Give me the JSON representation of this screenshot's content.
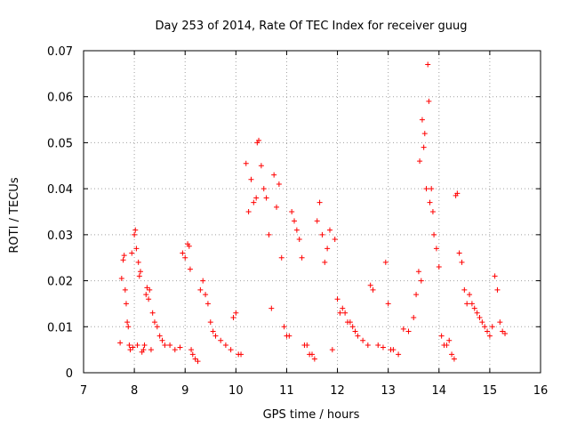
{
  "chart_data": {
    "type": "scatter",
    "title": "Day 253 of 2014, Rate Of TEC Index for receiver guug",
    "xlabel": "GPS time / hours",
    "ylabel": "ROTI / TECUs",
    "xlim": [
      7,
      16
    ],
    "ylim": [
      0,
      0.07
    ],
    "grid": true,
    "marker": "+",
    "color": "#ff0000",
    "x_ticks": [
      7,
      8,
      9,
      10,
      11,
      12,
      13,
      14,
      15,
      16
    ],
    "x_tick_labels": [
      "7",
      "8",
      "9",
      "10",
      "11",
      "12",
      "13",
      "14",
      "15",
      "16"
    ],
    "y_ticks": [
      0,
      0.01,
      0.02,
      0.03,
      0.04,
      0.05,
      0.06,
      0.07
    ],
    "y_tick_labels": [
      "0",
      "0.01",
      "0.02",
      "0.03",
      "0.04",
      "0.05",
      "0.06",
      "0.07"
    ],
    "series": [
      {
        "name": "ROTI",
        "points": [
          [
            7.72,
            0.0065
          ],
          [
            7.75,
            0.0205
          ],
          [
            7.78,
            0.0245
          ],
          [
            7.8,
            0.0255
          ],
          [
            7.82,
            0.018
          ],
          [
            7.84,
            0.015
          ],
          [
            7.86,
            0.011
          ],
          [
            7.88,
            0.01
          ],
          [
            7.9,
            0.006
          ],
          [
            7.92,
            0.005
          ],
          [
            7.95,
            0.026
          ],
          [
            7.97,
            0.0055
          ],
          [
            8.0,
            0.03
          ],
          [
            8.02,
            0.031
          ],
          [
            8.04,
            0.027
          ],
          [
            8.06,
            0.006
          ],
          [
            8.08,
            0.024
          ],
          [
            8.1,
            0.021
          ],
          [
            8.12,
            0.022
          ],
          [
            8.15,
            0.0045
          ],
          [
            8.18,
            0.005
          ],
          [
            8.2,
            0.006
          ],
          [
            8.23,
            0.017
          ],
          [
            8.25,
            0.0185
          ],
          [
            8.28,
            0.016
          ],
          [
            8.3,
            0.018
          ],
          [
            8.33,
            0.005
          ],
          [
            8.36,
            0.013
          ],
          [
            8.4,
            0.011
          ],
          [
            8.45,
            0.01
          ],
          [
            8.5,
            0.008
          ],
          [
            8.55,
            0.007
          ],
          [
            8.6,
            0.006
          ],
          [
            8.7,
            0.006
          ],
          [
            8.8,
            0.005
          ],
          [
            8.9,
            0.0055
          ],
          [
            8.95,
            0.026
          ],
          [
            9.0,
            0.025
          ],
          [
            9.05,
            0.028
          ],
          [
            9.08,
            0.0275
          ],
          [
            9.1,
            0.0225
          ],
          [
            9.12,
            0.005
          ],
          [
            9.15,
            0.004
          ],
          [
            9.2,
            0.003
          ],
          [
            9.25,
            0.0025
          ],
          [
            9.3,
            0.018
          ],
          [
            9.35,
            0.02
          ],
          [
            9.4,
            0.017
          ],
          [
            9.45,
            0.015
          ],
          [
            9.5,
            0.011
          ],
          [
            9.55,
            0.009
          ],
          [
            9.6,
            0.008
          ],
          [
            9.7,
            0.007
          ],
          [
            9.8,
            0.006
          ],
          [
            9.9,
            0.005
          ],
          [
            9.95,
            0.012
          ],
          [
            10.0,
            0.013
          ],
          [
            10.05,
            0.004
          ],
          [
            10.1,
            0.004
          ],
          [
            10.2,
            0.0455
          ],
          [
            10.25,
            0.035
          ],
          [
            10.3,
            0.042
          ],
          [
            10.35,
            0.037
          ],
          [
            10.4,
            0.038
          ],
          [
            10.42,
            0.05
          ],
          [
            10.45,
            0.0505
          ],
          [
            10.5,
            0.045
          ],
          [
            10.55,
            0.04
          ],
          [
            10.6,
            0.038
          ],
          [
            10.65,
            0.03
          ],
          [
            10.7,
            0.014
          ],
          [
            10.75,
            0.043
          ],
          [
            10.8,
            0.036
          ],
          [
            10.85,
            0.041
          ],
          [
            10.9,
            0.025
          ],
          [
            10.95,
            0.01
          ],
          [
            11.0,
            0.008
          ],
          [
            11.05,
            0.008
          ],
          [
            11.1,
            0.035
          ],
          [
            11.15,
            0.033
          ],
          [
            11.2,
            0.031
          ],
          [
            11.25,
            0.029
          ],
          [
            11.3,
            0.025
          ],
          [
            11.35,
            0.006
          ],
          [
            11.4,
            0.006
          ],
          [
            11.45,
            0.004
          ],
          [
            11.5,
            0.004
          ],
          [
            11.55,
            0.003
          ],
          [
            11.6,
            0.033
          ],
          [
            11.65,
            0.037
          ],
          [
            11.7,
            0.03
          ],
          [
            11.75,
            0.024
          ],
          [
            11.8,
            0.027
          ],
          [
            11.85,
            0.031
          ],
          [
            11.9,
            0.005
          ],
          [
            11.95,
            0.029
          ],
          [
            12.0,
            0.016
          ],
          [
            12.05,
            0.013
          ],
          [
            12.1,
            0.014
          ],
          [
            12.15,
            0.013
          ],
          [
            12.2,
            0.011
          ],
          [
            12.25,
            0.011
          ],
          [
            12.3,
            0.01
          ],
          [
            12.35,
            0.009
          ],
          [
            12.4,
            0.008
          ],
          [
            12.5,
            0.007
          ],
          [
            12.6,
            0.006
          ],
          [
            12.65,
            0.019
          ],
          [
            12.7,
            0.018
          ],
          [
            12.8,
            0.006
          ],
          [
            12.9,
            0.0055
          ],
          [
            12.95,
            0.024
          ],
          [
            13.0,
            0.015
          ],
          [
            13.05,
            0.005
          ],
          [
            13.1,
            0.005
          ],
          [
            13.2,
            0.004
          ],
          [
            13.3,
            0.0095
          ],
          [
            13.4,
            0.009
          ],
          [
            13.5,
            0.012
          ],
          [
            13.55,
            0.017
          ],
          [
            13.6,
            0.022
          ],
          [
            13.62,
            0.046
          ],
          [
            13.65,
            0.02
          ],
          [
            13.67,
            0.055
          ],
          [
            13.7,
            0.049
          ],
          [
            13.72,
            0.052
          ],
          [
            13.75,
            0.04
          ],
          [
            13.78,
            0.067
          ],
          [
            13.8,
            0.059
          ],
          [
            13.82,
            0.037
          ],
          [
            13.85,
            0.04
          ],
          [
            13.88,
            0.035
          ],
          [
            13.9,
            0.03
          ],
          [
            13.95,
            0.027
          ],
          [
            14.0,
            0.023
          ],
          [
            14.05,
            0.008
          ],
          [
            14.1,
            0.006
          ],
          [
            14.15,
            0.006
          ],
          [
            14.2,
            0.007
          ],
          [
            14.25,
            0.004
          ],
          [
            14.3,
            0.003
          ],
          [
            14.33,
            0.0385
          ],
          [
            14.36,
            0.039
          ],
          [
            14.4,
            0.026
          ],
          [
            14.45,
            0.024
          ],
          [
            14.5,
            0.018
          ],
          [
            14.55,
            0.015
          ],
          [
            14.6,
            0.017
          ],
          [
            14.65,
            0.015
          ],
          [
            14.7,
            0.014
          ],
          [
            14.75,
            0.013
          ],
          [
            14.8,
            0.012
          ],
          [
            14.85,
            0.011
          ],
          [
            14.9,
            0.01
          ],
          [
            14.95,
            0.009
          ],
          [
            15.0,
            0.008
          ],
          [
            15.05,
            0.01
          ],
          [
            15.1,
            0.021
          ],
          [
            15.15,
            0.018
          ],
          [
            15.2,
            0.011
          ],
          [
            15.25,
            0.009
          ],
          [
            15.3,
            0.0085
          ]
        ]
      }
    ]
  }
}
